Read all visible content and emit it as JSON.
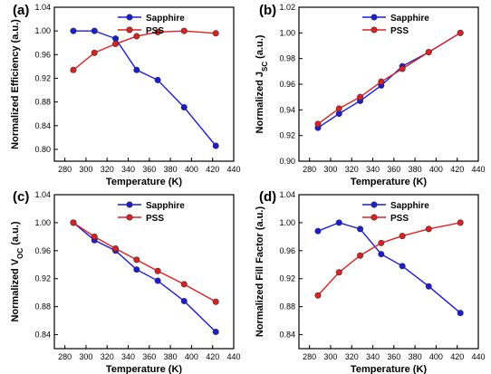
{
  "chart_data": [
    {
      "type": "line",
      "panel_label": "(a)",
      "xlabel": "Temperature (K)",
      "ylabel": "Normalized  Efficiency (a.u.)",
      "xlim": [
        270,
        440
      ],
      "ylim": [
        0.78,
        1.04
      ],
      "xticks": [
        "280",
        "300",
        "320",
        "340",
        "360",
        "380",
        "400",
        "420",
        "440"
      ],
      "yticks": [
        "0.80",
        "0.84",
        "0.88",
        "0.92",
        "0.96",
        "1.00",
        "1.04"
      ],
      "legend_position": "top-center",
      "series": [
        {
          "name": "Sapphire",
          "color": "#1c1cd8",
          "x": [
            288,
            308,
            328,
            348,
            368,
            393,
            423
          ],
          "y": [
            1.0,
            1.0,
            0.987,
            0.934,
            0.917,
            0.871,
            0.806
          ]
        },
        {
          "name": "PSS",
          "color": "#e02020",
          "x": [
            288,
            308,
            328,
            348,
            368,
            393,
            423
          ],
          "y": [
            0.934,
            0.963,
            0.978,
            0.991,
            0.998,
            1.0,
            0.996
          ]
        }
      ]
    },
    {
      "type": "line",
      "panel_label": "(b)",
      "xlabel": "Temperature (K)",
      "ylabel": "Normalized J_SC (a.u.)",
      "xlim": [
        270,
        440
      ],
      "ylim": [
        0.9,
        1.02
      ],
      "xticks": [
        "280",
        "300",
        "320",
        "340",
        "360",
        "380",
        "400",
        "420",
        "440"
      ],
      "yticks": [
        "0.90",
        "0.92",
        "0.94",
        "0.96",
        "0.98",
        "1.00",
        "1.02"
      ],
      "legend_position": "top-center",
      "series": [
        {
          "name": "Sapphire",
          "color": "#1c1cd8",
          "x": [
            288,
            308,
            328,
            348,
            368,
            393,
            423
          ],
          "y": [
            0.926,
            0.937,
            0.947,
            0.959,
            0.974,
            0.985,
            1.0
          ]
        },
        {
          "name": "PSS",
          "color": "#e02020",
          "x": [
            288,
            308,
            328,
            348,
            368,
            393,
            423
          ],
          "y": [
            0.929,
            0.941,
            0.95,
            0.962,
            0.972,
            0.985,
            1.0
          ]
        }
      ]
    },
    {
      "type": "line",
      "panel_label": "(c)",
      "xlabel": "Temperature (K)",
      "ylabel": "Normalized  V_OC (a.u.)",
      "xlim": [
        270,
        440
      ],
      "ylim": [
        0.82,
        1.04
      ],
      "xticks": [
        "280",
        "300",
        "320",
        "340",
        "360",
        "380",
        "400",
        "420",
        "440"
      ],
      "yticks": [
        "0.84",
        "0.88",
        "0.92",
        "0.96",
        "1.00",
        "1.04"
      ],
      "legend_position": "top-center",
      "series": [
        {
          "name": "Sapphire",
          "color": "#1c1cd8",
          "x": [
            288,
            308,
            328,
            348,
            368,
            393,
            423
          ],
          "y": [
            1.0,
            0.975,
            0.96,
            0.933,
            0.917,
            0.888,
            0.844
          ]
        },
        {
          "name": "PSS",
          "color": "#e02020",
          "x": [
            288,
            308,
            328,
            348,
            368,
            393,
            423
          ],
          "y": [
            1.0,
            0.98,
            0.963,
            0.947,
            0.931,
            0.912,
            0.887
          ]
        }
      ]
    },
    {
      "type": "line",
      "panel_label": "(d)",
      "xlabel": "Temperature (K)",
      "ylabel": "Normalized  Fill Factor (a.u.)",
      "xlim": [
        270,
        440
      ],
      "ylim": [
        0.82,
        1.04
      ],
      "xticks": [
        "280",
        "300",
        "320",
        "340",
        "360",
        "380",
        "400",
        "420",
        "440"
      ],
      "yticks": [
        "0.84",
        "0.88",
        "0.92",
        "0.96",
        "1.00",
        "1.04"
      ],
      "legend_position": "top-center",
      "series": [
        {
          "name": "Sapphire",
          "color": "#1c1cd8",
          "x": [
            288,
            308,
            328,
            348,
            368,
            393,
            423
          ],
          "y": [
            0.988,
            1.0,
            0.991,
            0.955,
            0.938,
            0.909,
            0.871
          ]
        },
        {
          "name": "PSS",
          "color": "#e02020",
          "x": [
            288,
            308,
            328,
            348,
            368,
            393,
            423
          ],
          "y": [
            0.896,
            0.929,
            0.953,
            0.971,
            0.981,
            0.991,
            1.0
          ]
        }
      ]
    }
  ]
}
